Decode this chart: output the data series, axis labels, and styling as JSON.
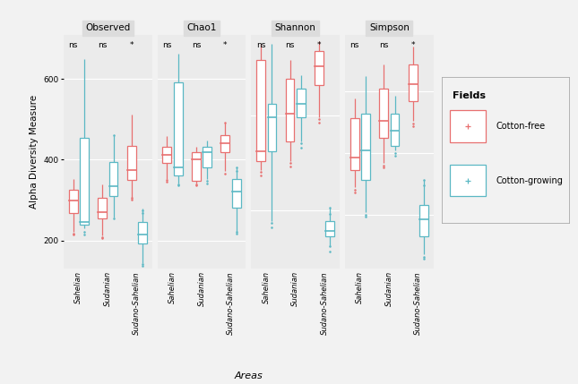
{
  "panels": [
    "Observed",
    "Chao1",
    "Shannon",
    "Simpson"
  ],
  "areas": [
    "Sahelian",
    "Sudanian",
    "Sudano-Sahelian"
  ],
  "colors": {
    "cotton_free": "#E87070",
    "cotton_growing": "#5BB8C4"
  },
  "significance": {
    "Observed": [
      "ns",
      "ns",
      "*"
    ],
    "Chao1": [
      "ns",
      "ns",
      "*"
    ],
    "Shannon": [
      "ns",
      "ns",
      "*"
    ],
    "Simpson": [
      "ns",
      "ns",
      "*"
    ]
  },
  "ylabels": {
    "Observed": {
      "ticks": [
        200,
        400,
        600
      ],
      "lim": [
        130,
        710
      ]
    },
    "Chao1": {
      "ticks": [
        200,
        400,
        600
      ],
      "lim": [
        130,
        710
      ]
    },
    "Shannon": {
      "ticks": [
        1,
        2
      ],
      "lim": [
        0.38,
        2.85
      ]
    },
    "Simpson": {
      "ticks": [
        0.25,
        0.5,
        0.75
      ],
      "lim": [
        0.03,
        0.98
      ]
    }
  },
  "boxplot_data": {
    "Observed": {
      "Sahelian": {
        "cotton_free": {
          "whislo": 222,
          "q1": 268,
          "med": 300,
          "q3": 325,
          "whishi": 352,
          "fliers": [
            215,
            218
          ]
        },
        "cotton_growing": {
          "whislo": 230,
          "q1": 240,
          "med": 245,
          "q3": 455,
          "whishi": 650,
          "fliers": [
            222,
            215
          ]
        }
      },
      "Sudanian": {
        "cotton_free": {
          "whislo": 212,
          "q1": 255,
          "med": 270,
          "q3": 305,
          "whishi": 340,
          "fliers": [
            205,
            208
          ]
        },
        "cotton_growing": {
          "whislo": 258,
          "q1": 310,
          "med": 335,
          "q3": 395,
          "whishi": 460,
          "fliers": [
            255,
            462
          ]
        }
      },
      "Sudano-Sahelian": {
        "cotton_free": {
          "whislo": 305,
          "q1": 350,
          "med": 375,
          "q3": 435,
          "whishi": 512,
          "fliers": [
            302,
            305
          ]
        },
        "cotton_growing": {
          "whislo": 145,
          "q1": 192,
          "med": 215,
          "q3": 245,
          "whishi": 280,
          "fliers": [
            138,
            142,
            268,
            275
          ]
        }
      }
    },
    "Chao1": {
      "Sahelian": {
        "cotton_free": {
          "whislo": 352,
          "q1": 392,
          "med": 412,
          "q3": 432,
          "whishi": 458,
          "fliers": [
            346,
            350
          ]
        },
        "cotton_growing": {
          "whislo": 342,
          "q1": 362,
          "med": 382,
          "q3": 592,
          "whishi": 662,
          "fliers": [
            336,
            340
          ]
        }
      },
      "Sudanian": {
        "cotton_free": {
          "whislo": 342,
          "q1": 347,
          "med": 402,
          "q3": 418,
          "whishi": 432,
          "fliers": [
            336,
            340
          ]
        },
        "cotton_growing": {
          "whislo": 352,
          "q1": 382,
          "med": 418,
          "q3": 432,
          "whishi": 448,
          "fliers": [
            342,
            347
          ]
        }
      },
      "Sudano-Sahelian": {
        "cotton_free": {
          "whislo": 372,
          "q1": 418,
          "med": 442,
          "q3": 462,
          "whishi": 492,
          "fliers": [
            366,
            492
          ]
        },
        "cotton_growing": {
          "whislo": 222,
          "q1": 282,
          "med": 322,
          "q3": 352,
          "whishi": 382,
          "fliers": [
            218,
            222,
            372,
            382
          ]
        }
      }
    },
    "Shannon": {
      "Sahelian": {
        "cotton_free": {
          "whislo": 1.42,
          "q1": 1.52,
          "med": 1.62,
          "q3": 2.58,
          "whishi": 2.75,
          "fliers": [
            1.36,
            1.4
          ]
        },
        "cotton_growing": {
          "whislo": 0.88,
          "q1": 1.62,
          "med": 1.98,
          "q3": 2.12,
          "whishi": 2.75,
          "fliers": [
            0.82,
            0.86
          ]
        }
      },
      "Sudanian": {
        "cotton_free": {
          "whislo": 1.52,
          "q1": 1.72,
          "med": 2.02,
          "q3": 2.38,
          "whishi": 2.58,
          "fliers": [
            1.46,
            1.5
          ]
        },
        "cotton_growing": {
          "whislo": 1.72,
          "q1": 1.98,
          "med": 2.12,
          "q3": 2.28,
          "whishi": 2.42,
          "fliers": [
            1.66,
            1.7
          ]
        }
      },
      "Sudano-Sahelian": {
        "cotton_free": {
          "whislo": 1.98,
          "q1": 2.32,
          "med": 2.52,
          "q3": 2.68,
          "whishi": 2.78,
          "fliers": [
            1.92,
            1.96
          ]
        },
        "cotton_growing": {
          "whislo": 0.62,
          "q1": 0.72,
          "med": 0.78,
          "q3": 0.88,
          "whishi": 1.02,
          "fliers": [
            0.56,
            0.62,
            0.96,
            1.02
          ]
        }
      }
    },
    "Simpson": {
      "Sahelian": {
        "cotton_free": {
          "whislo": 0.36,
          "q1": 0.43,
          "med": 0.48,
          "q3": 0.64,
          "whishi": 0.72,
          "fliers": [
            0.34,
            0.35
          ]
        },
        "cotton_growing": {
          "whislo": 0.26,
          "q1": 0.39,
          "med": 0.51,
          "q3": 0.66,
          "whishi": 0.81,
          "fliers": [
            0.24,
            0.25
          ]
        }
      },
      "Sudanian": {
        "cotton_free": {
          "whislo": 0.46,
          "q1": 0.56,
          "med": 0.63,
          "q3": 0.76,
          "whishi": 0.86,
          "fliers": [
            0.44,
            0.45
          ]
        },
        "cotton_growing": {
          "whislo": 0.51,
          "q1": 0.53,
          "med": 0.59,
          "q3": 0.66,
          "whishi": 0.73,
          "fliers": [
            0.49,
            0.5
          ]
        }
      },
      "Sudano-Sahelian": {
        "cotton_free": {
          "whislo": 0.63,
          "q1": 0.71,
          "med": 0.78,
          "q3": 0.86,
          "whishi": 0.93,
          "fliers": [
            0.61,
            0.62
          ]
        },
        "cotton_growing": {
          "whislo": 0.09,
          "q1": 0.16,
          "med": 0.23,
          "q3": 0.29,
          "whishi": 0.39,
          "fliers": [
            0.07,
            0.08,
            0.37,
            0.39
          ]
        }
      }
    }
  },
  "legend": {
    "title": "Fields",
    "cotton_free": "Cotton-free",
    "cotton_growing": "Cotton-growing"
  },
  "ylabel": "Alpha Diversity Measure",
  "xlabel": "Areas",
  "fig_bg": "#F2F2F2",
  "panel_bg": "#EBEBEB"
}
